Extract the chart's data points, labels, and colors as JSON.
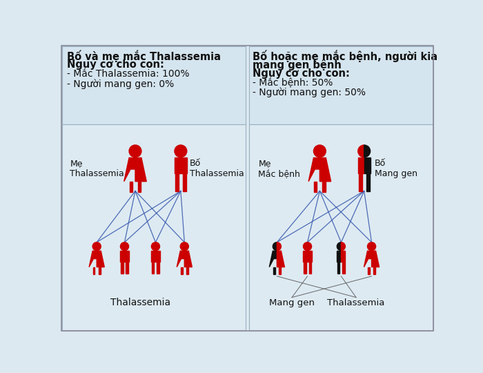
{
  "bg_top": "#dce9f0",
  "bg_bottom": "#e0e8ef",
  "red_color": "#cc0000",
  "black_color": "#111111",
  "line_color": "#3355aa",
  "text_color": "#111111",
  "left_title1": "Bố và mẹ mắc Thalassemia",
  "left_title2": "Nguy cơ cho con:",
  "left_b1": "- Mắc Thalassemia: 100%",
  "left_b2": "- Người mang gen: 0%",
  "right_title1": "Bố hoặc mẹ mắc bệnh, người kia",
  "right_title2": "mang gen bệnh",
  "right_title3": "Nguy cơ cho con:",
  "right_b1": "- Mắc bệnh: 50%",
  "right_b2": "- Người mang gen: 50%",
  "label_me_thal": "Mẹ\nThalassemia",
  "label_bo_thal": "Bố\nThalassemia",
  "label_me_mac": "Mẹ\nMắc bệnh",
  "label_bo_mang": "Bố\nMang gen",
  "label_thalassemia": "Thalassemia",
  "label_mang_gen": "Mang gen",
  "label_thalassemia2": "Thalassemia"
}
